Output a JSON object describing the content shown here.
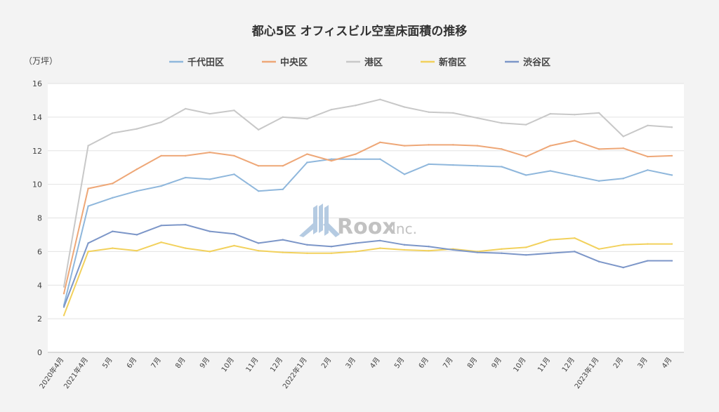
{
  "chart_data": {
    "type": "line",
    "title": "都心5区 オフィスビル空室床面積の推移",
    "ylabel": "（万坪）",
    "xlabel": "",
    "ylim": [
      0,
      16
    ],
    "yticks": [
      0,
      2,
      4,
      6,
      8,
      10,
      12,
      14,
      16
    ],
    "grid": true,
    "legend_position": "top",
    "categories": [
      "2020年4月",
      "2021年4月",
      "5月",
      "6月",
      "7月",
      "8月",
      "9月",
      "10月",
      "11月",
      "12月",
      "2022年1月",
      "2月",
      "3月",
      "4月",
      "5月",
      "6月",
      "7月",
      "8月",
      "9月",
      "10月",
      "11月",
      "12月",
      "2023年1月",
      "2月",
      "3月",
      "4月"
    ],
    "series": [
      {
        "name": "千代田区",
        "color": "#8fb7dc",
        "values": [
          2.8,
          8.7,
          9.2,
          9.6,
          9.9,
          10.4,
          10.3,
          10.6,
          9.6,
          9.7,
          11.3,
          11.5,
          11.5,
          11.5,
          10.6,
          11.2,
          11.15,
          11.1,
          11.05,
          10.55,
          10.8,
          10.5,
          10.2,
          10.35,
          10.85,
          10.55
        ]
      },
      {
        "name": "中央区",
        "color": "#eea777",
        "values": [
          3.5,
          9.75,
          10.05,
          10.9,
          11.7,
          11.7,
          11.9,
          11.7,
          11.1,
          11.1,
          11.8,
          11.4,
          11.8,
          12.5,
          12.3,
          12.35,
          12.35,
          12.3,
          12.1,
          11.65,
          12.3,
          12.6,
          12.1,
          12.15,
          11.65,
          11.7
        ]
      },
      {
        "name": "港区",
        "color": "#c8c8c8",
        "values": [
          3.9,
          12.3,
          13.05,
          13.3,
          13.7,
          14.5,
          14.2,
          14.4,
          13.25,
          14.0,
          13.9,
          14.45,
          14.7,
          15.05,
          14.6,
          14.3,
          14.25,
          13.95,
          13.65,
          13.55,
          14.2,
          14.15,
          14.25,
          12.85,
          13.5,
          13.4
        ]
      },
      {
        "name": "新宿区",
        "color": "#f2d15c",
        "values": [
          2.2,
          6.0,
          6.2,
          6.05,
          6.55,
          6.2,
          6.0,
          6.35,
          6.05,
          5.95,
          5.9,
          5.9,
          6.0,
          6.2,
          6.1,
          6.05,
          6.15,
          6.0,
          6.15,
          6.25,
          6.7,
          6.8,
          6.15,
          6.4,
          6.45,
          6.45
        ]
      },
      {
        "name": "渋谷区",
        "color": "#7c96c8",
        "values": [
          2.7,
          6.5,
          7.2,
          7.0,
          7.55,
          7.6,
          7.2,
          7.05,
          6.5,
          6.7,
          6.4,
          6.3,
          6.5,
          6.65,
          6.4,
          6.3,
          6.1,
          5.95,
          5.9,
          5.8,
          5.9,
          6.0,
          5.4,
          5.05,
          5.45,
          5.45
        ]
      }
    ]
  },
  "watermark": {
    "logo": "ROOX",
    "logo_main": "Roox",
    "logo_suffix": "Inc."
  }
}
